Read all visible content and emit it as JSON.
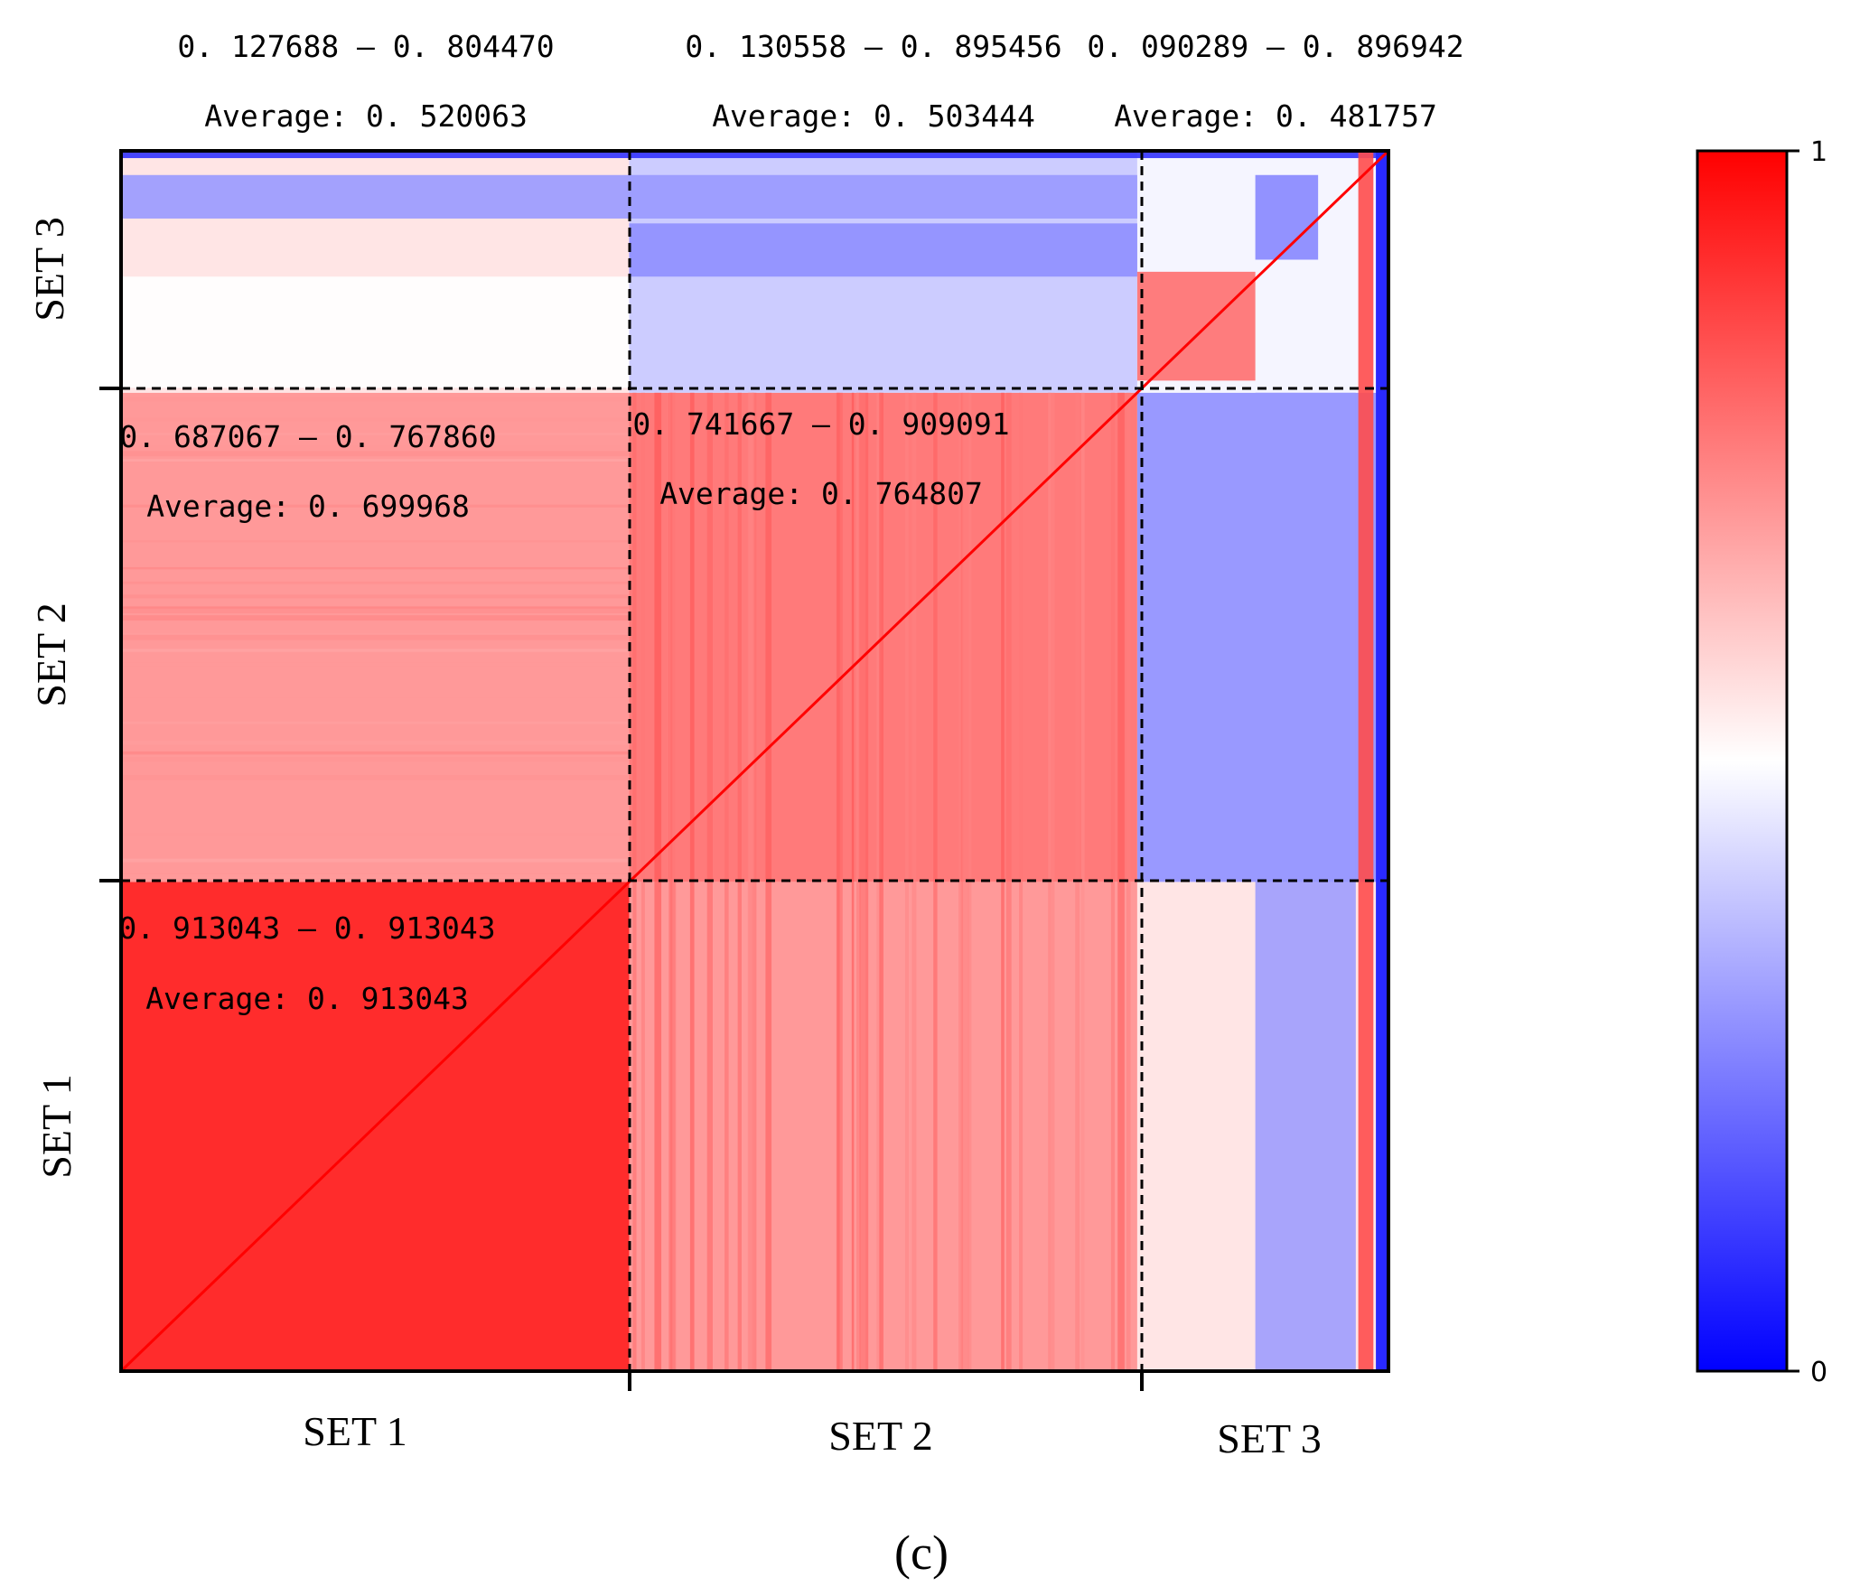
{
  "chart_data": {
    "type": "heatmap",
    "panel_label": "(c)",
    "x_groups": [
      "SET 1",
      "SET 2",
      "SET 3"
    ],
    "y_groups": [
      "SET 1",
      "SET 2",
      "SET 3"
    ],
    "group_sizes": [
      89,
      89,
      44
    ],
    "colorbar": {
      "min": 0,
      "max": 1,
      "min_label": "0",
      "max_label": "1",
      "colors": [
        "#0000ff",
        "#ffffff",
        "#ff0000"
      ]
    },
    "block_colors": {
      "0_0": 0.913043,
      "0_1": 0.7,
      "0_2": 0.55,
      "1_0": 0.7,
      "1_1": 0.76,
      "1_2": 0.3,
      "2_0": 0.55,
      "2_1": 0.4,
      "2_2": 0.48
    },
    "annotations": [
      {
        "id": "set3-set1",
        "range": "0. 127688 – 0. 804470",
        "average": "Average: 0. 520063"
      },
      {
        "id": "set3-set2",
        "range": "0. 130558 – 0. 895456",
        "average": "Average: 0. 503444"
      },
      {
        "id": "set3-set3",
        "range": "0. 090289 – 0. 896942",
        "average": "Average: 0. 481757"
      },
      {
        "id": "set2-set1",
        "range": "0. 687067 – 0. 767860",
        "average": "Average: 0. 699968"
      },
      {
        "id": "set2-set2",
        "range": "0. 741667 – 0. 909091",
        "average": "Average: 0. 764807"
      },
      {
        "id": "set1-set1",
        "range": "0. 913043 – 0. 913043",
        "average": "Average: 0. 913043"
      }
    ]
  }
}
